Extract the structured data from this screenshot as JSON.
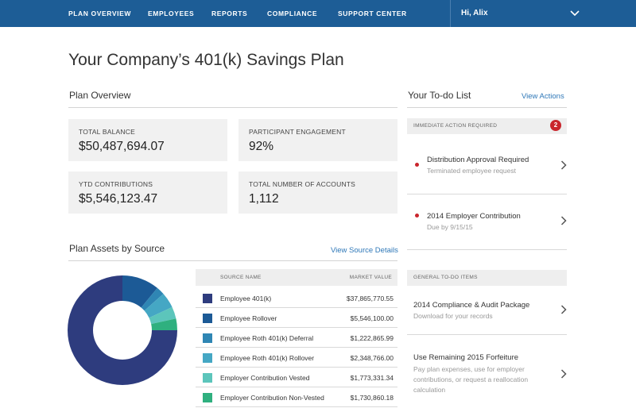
{
  "nav": {
    "items": [
      "Plan Overview",
      "Employees",
      "Reports",
      "Compliance",
      "Support Center"
    ],
    "user_greeting": "Hi, Alix",
    "menu_icon": "chevron-down-icon"
  },
  "page_title": "Your Company’s 401(k) Savings Plan",
  "plan_overview": {
    "title": "Plan Overview",
    "cards": [
      {
        "label": "Total Balance",
        "value": "$50,487,694.07"
      },
      {
        "label": "Participant Engagement",
        "value": "92%"
      },
      {
        "label": "YTD Contributions",
        "value": "$5,546,123.47"
      },
      {
        "label": "Total Number of Accounts",
        "value": "1,112"
      }
    ]
  },
  "assets": {
    "title": "Plan Assets by Source",
    "link": "View Source Details",
    "table": {
      "columns": [
        "Source Name",
        "Market Value"
      ],
      "rows": [
        {
          "name": "Employee 401(k)",
          "value": "$37,865,770.55",
          "amount": 37865770.55,
          "color": "#2e3c7e"
        },
        {
          "name": "Employee Rollover",
          "value": "$5,546,100.00",
          "amount": 5546100.0,
          "color": "#1c5a96"
        },
        {
          "name": "Employee Roth 401(k) Deferral",
          "value": "$1,222,865.99",
          "amount": 1222865.99,
          "color": "#2f86b4"
        },
        {
          "name": "Employee Roth 401(k) Rollover",
          "value": "$2,348,766.00",
          "amount": 2348766.0,
          "color": "#45a7c4"
        },
        {
          "name": "Employer Contribution Vested",
          "value": "$1,773,331.34",
          "amount": 1773331.34,
          "color": "#5cc5bb"
        },
        {
          "name": "Employer Contribution Non-Vested",
          "value": "$1,730,860.18",
          "amount": 1730860.18,
          "color": "#2fb07f"
        }
      ]
    }
  },
  "todo": {
    "title": "Your To-do List",
    "link": "View Actions",
    "immediate": {
      "label": "Immediate Action Required",
      "count": "2",
      "items": [
        {
          "title": "Distribution Approval Required",
          "subtitle": "Terminated employee request"
        },
        {
          "title": "2014 Employer Contribution",
          "subtitle": "Due by 9/15/15"
        }
      ]
    },
    "general": {
      "label": "General To-do Items",
      "items": [
        {
          "title": "2014 Compliance & Audit Package",
          "subtitle": "Download for your records"
        },
        {
          "title": "Use Remaining 2015 Forfeiture",
          "subtitle": "Pay plan expenses, use for employer contributions, or request a reallocation calculation"
        }
      ]
    }
  },
  "colors": {
    "nav_bg": "#1d5d96",
    "link": "#2f78b8",
    "alert": "#c9252c",
    "card_bg": "#f1f1f1"
  }
}
